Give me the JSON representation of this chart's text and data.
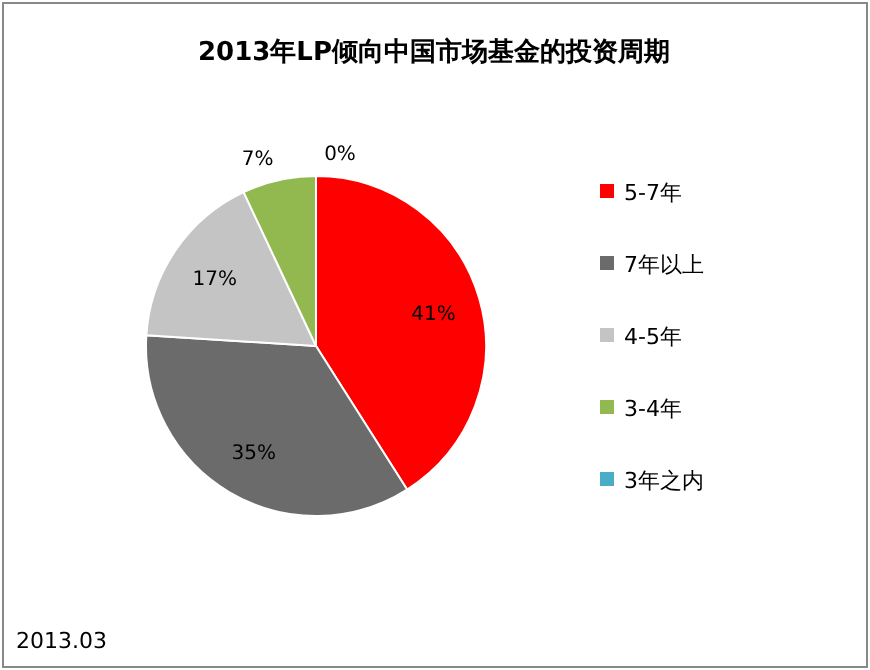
{
  "chart_data": {
    "type": "pie",
    "title": "2013年LP倾向中国市场基金的投资周期",
    "categories": [
      "5-7年",
      "7年以上",
      "4-5年",
      "3-4年",
      "3年之内"
    ],
    "values": [
      41,
      35,
      17,
      7,
      0
    ],
    "colors": [
      "#ff0000",
      "#6b6b6b",
      "#c4c4c4",
      "#92b850",
      "#4bacc6"
    ],
    "value_labels": [
      "41%",
      "35%",
      "17%",
      "7%",
      "0%"
    ],
    "legend": "right",
    "annotations": [
      "2013.03"
    ]
  }
}
